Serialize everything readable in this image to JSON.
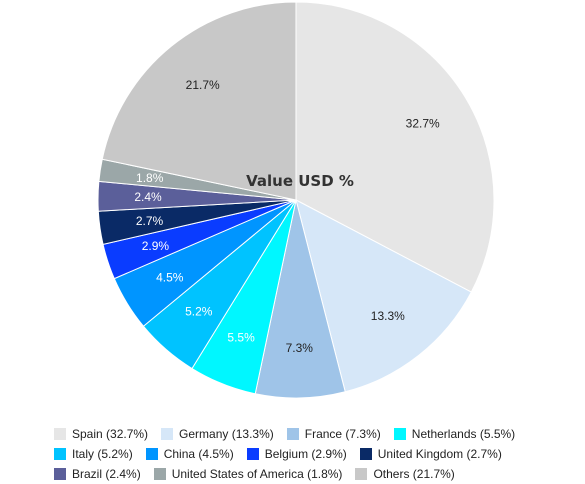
{
  "chart_data": {
    "type": "pie",
    "title": "Value USD %",
    "start_angle_deg": 0,
    "direction": "clockwise",
    "slices": [
      {
        "label": "Spain (32.7%)",
        "value": 32.7,
        "data_label": "32.7%",
        "color": "#e6e6e6",
        "label_color": "#222222"
      },
      {
        "label": "Germany (13.3%)",
        "value": 13.3,
        "data_label": "13.3%",
        "color": "#d6e7f8",
        "label_color": "#222222"
      },
      {
        "label": "France (7.3%)",
        "value": 7.3,
        "data_label": "7.3%",
        "color": "#9fc4e8",
        "label_color": "#222222"
      },
      {
        "label": "Netherlands (5.5%)",
        "value": 5.5,
        "data_label": "5.5%",
        "color": "#00f7ff",
        "label_color": "#ffffff"
      },
      {
        "label": "Italy (5.2%)",
        "value": 5.2,
        "data_label": "5.2%",
        "color": "#00c3ff",
        "label_color": "#ffffff"
      },
      {
        "label": "China (4.5%)",
        "value": 4.5,
        "data_label": "4.5%",
        "color": "#0095ff",
        "label_color": "#ffffff"
      },
      {
        "label": "Belgium (2.9%)",
        "value": 2.9,
        "data_label": "2.9%",
        "color": "#0a3cff",
        "label_color": "#ffffff"
      },
      {
        "label": "United Kingdom (2.7%)",
        "value": 2.7,
        "data_label": "2.7%",
        "color": "#0a2a66",
        "label_color": "#ffffff"
      },
      {
        "label": "Brazil (2.4%)",
        "value": 2.4,
        "data_label": "2.4%",
        "color": "#5b5f9a",
        "label_color": "#ffffff"
      },
      {
        "label": "United States of America (1.8%)",
        "value": 1.8,
        "data_label": "1.8%",
        "color": "#9ba7a8",
        "label_color": "#ffffff"
      },
      {
        "label": "Others (21.7%)",
        "value": 21.7,
        "data_label": "21.7%",
        "color": "#c8c8c8",
        "label_color": "#222222"
      }
    ],
    "legend_position": "bottom"
  }
}
